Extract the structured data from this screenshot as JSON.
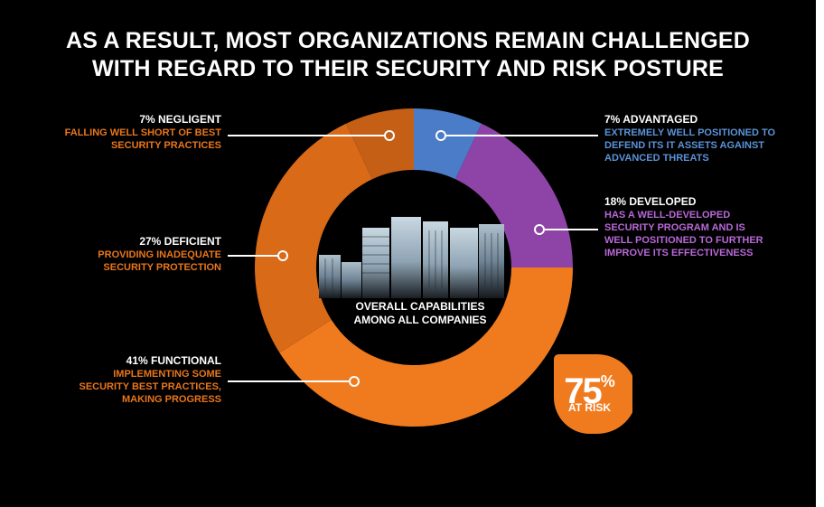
{
  "title": {
    "line1": "AS A RESULT, MOST ORGANIZATIONS REMAIN CHALLENGED",
    "line2": "WITH REGARD TO THEIR SECURITY AND RISK POSTURE"
  },
  "center": {
    "line1": "OVERALL CAPABILITIES",
    "line2": "AMONG ALL COMPANIES"
  },
  "risk": {
    "value": "75",
    "unit": "%",
    "label": "AT RISK",
    "color": "#F07B1F"
  },
  "labels": {
    "negligent": {
      "head": "7% NEGLIGENT",
      "lines": [
        "FALLING WELL SHORT OF BEST",
        "SECURITY PRACTICES"
      ],
      "color": "#E8761C"
    },
    "deficient": {
      "head": "27% DEFICIENT",
      "lines": [
        "PROVIDING INADEQUATE",
        "SECURITY PROTECTION"
      ],
      "color": "#E8761C"
    },
    "functional": {
      "head": "41% FUNCTIONAL",
      "lines": [
        "IMPLEMENTING SOME",
        "SECURITY BEST PRACTICES,",
        "MAKING PROGRESS"
      ],
      "color": "#E8761C"
    },
    "advantaged": {
      "head": "7% ADVANTAGED",
      "lines": [
        "EXTREMELY WELL POSITIONED TO",
        "DEFEND ITS IT ASSETS AGAINST",
        "ADVANCED THREATS"
      ],
      "color": "#5B93D8"
    },
    "developed": {
      "head": "18% DEVELOPED",
      "lines": [
        "HAS A WELL-DEVELOPED",
        "SECURITY PROGRAM AND IS",
        "WELL POSITIONED TO FURTHER",
        "IMPROVE ITS EFFECTIVENESS"
      ],
      "color": "#B968D8"
    }
  },
  "chart_data": {
    "type": "pie",
    "title": "",
    "categories": [
      "ADVANTAGED",
      "DEVELOPED",
      "FUNCTIONAL",
      "DEFICIENT",
      "NEGLIGENT"
    ],
    "values": [
      7,
      18,
      41,
      27,
      7
    ],
    "colors": [
      "#4A7CC8",
      "#8E44A6",
      "#F07B1F",
      "#D86A18",
      "#C45F15"
    ],
    "donut": true,
    "start": "12 o'clock",
    "direction": "clockwise"
  }
}
